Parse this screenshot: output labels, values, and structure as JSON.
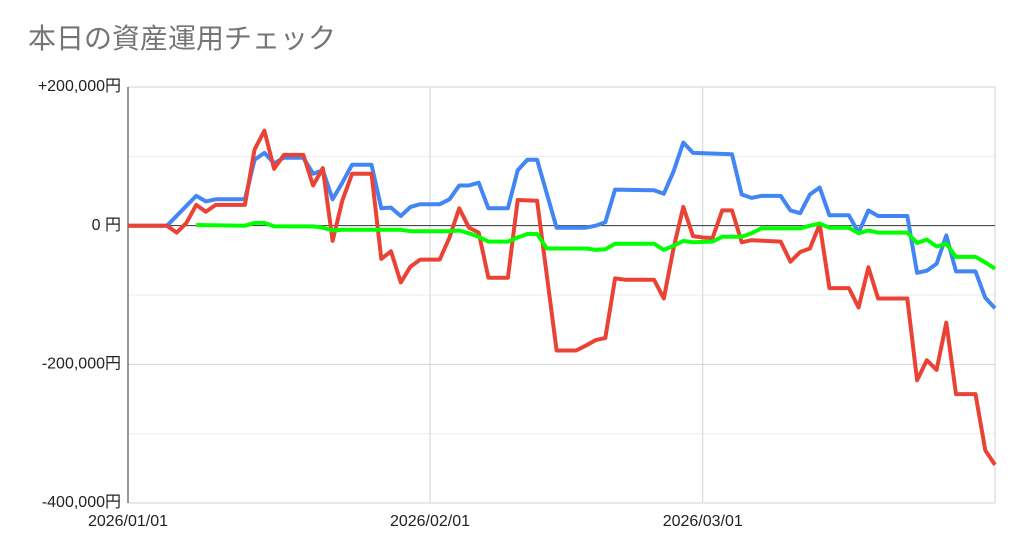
{
  "chart_data": {
    "type": "line",
    "title": "本日の資産運用チェック",
    "xlim": [
      "2026-01-01",
      "2026-03-31"
    ],
    "ylim": [
      -400000,
      200000
    ],
    "grid": true,
    "minor_grid": [
      100000,
      -100000,
      -300000
    ],
    "legend": "none",
    "xticks": [
      {
        "value": "2026-01-01",
        "label": "2026/01/01"
      },
      {
        "value": "2026-02-01",
        "label": "2026/02/01"
      },
      {
        "value": "2026-03-01",
        "label": "2026/03/01"
      }
    ],
    "yticks": [
      {
        "value": 200000,
        "label": "+200,000円"
      },
      {
        "value": 0,
        "label": "0 円"
      },
      {
        "value": -200000,
        "label": "-200,000円"
      },
      {
        "value": -400000,
        "label": "-400,000円"
      }
    ],
    "series": [
      {
        "color": "#4285f4",
        "points": [
          [
            "2026-01-01",
            0
          ],
          [
            "2026-01-05",
            0
          ],
          [
            "2026-01-08",
            43000
          ],
          [
            "2026-01-09",
            35000
          ],
          [
            "2026-01-10",
            38000
          ],
          [
            "2026-01-13",
            38000
          ],
          [
            "2026-01-14",
            95000
          ],
          [
            "2026-01-15",
            105000
          ],
          [
            "2026-01-16",
            90000
          ],
          [
            "2026-01-17",
            98000
          ],
          [
            "2026-01-19",
            98000
          ],
          [
            "2026-01-20",
            75000
          ],
          [
            "2026-01-21",
            80000
          ],
          [
            "2026-01-22",
            38000
          ],
          [
            "2026-01-23",
            62000
          ],
          [
            "2026-01-24",
            88000
          ],
          [
            "2026-01-26",
            88000
          ],
          [
            "2026-01-27",
            25000
          ],
          [
            "2026-01-28",
            26000
          ],
          [
            "2026-01-29",
            14000
          ],
          [
            "2026-01-30",
            27000
          ],
          [
            "2026-01-31",
            31000
          ],
          [
            "2026-02-02",
            31000
          ],
          [
            "2026-02-03",
            38000
          ],
          [
            "2026-02-04",
            58000
          ],
          [
            "2026-02-05",
            58000
          ],
          [
            "2026-02-06",
            62000
          ],
          [
            "2026-02-07",
            25000
          ],
          [
            "2026-02-09",
            25000
          ],
          [
            "2026-02-10",
            80000
          ],
          [
            "2026-02-11",
            95000
          ],
          [
            "2026-02-12",
            95000
          ],
          [
            "2026-02-14",
            -3000
          ],
          [
            "2026-02-17",
            -3000
          ],
          [
            "2026-02-18",
            0
          ],
          [
            "2026-02-19",
            5000
          ],
          [
            "2026-02-20",
            52000
          ],
          [
            "2026-02-24",
            51000
          ],
          [
            "2026-02-25",
            46000
          ],
          [
            "2026-02-26",
            78000
          ],
          [
            "2026-02-27",
            120000
          ],
          [
            "2026-02-28",
            105000
          ],
          [
            "2026-03-04",
            103000
          ],
          [
            "2026-03-05",
            45000
          ],
          [
            "2026-03-06",
            40000
          ],
          [
            "2026-03-07",
            43000
          ],
          [
            "2026-03-09",
            43000
          ],
          [
            "2026-03-10",
            22000
          ],
          [
            "2026-03-11",
            18000
          ],
          [
            "2026-03-12",
            45000
          ],
          [
            "2026-03-13",
            55000
          ],
          [
            "2026-03-14",
            15000
          ],
          [
            "2026-03-16",
            15000
          ],
          [
            "2026-03-17",
            -10000
          ],
          [
            "2026-03-18",
            22000
          ],
          [
            "2026-03-19",
            14000
          ],
          [
            "2026-03-22",
            14000
          ],
          [
            "2026-03-23",
            -68000
          ],
          [
            "2026-03-24",
            -65000
          ],
          [
            "2026-03-25",
            -55000
          ],
          [
            "2026-03-26",
            -14000
          ],
          [
            "2026-03-27",
            -66000
          ],
          [
            "2026-03-29",
            -66000
          ],
          [
            "2026-03-30",
            -104000
          ],
          [
            "2026-03-31",
            -119000
          ]
        ]
      },
      {
        "color": "#ea4335",
        "points": [
          [
            "2026-01-01",
            0
          ],
          [
            "2026-01-05",
            0
          ],
          [
            "2026-01-06",
            -10000
          ],
          [
            "2026-01-07",
            4000
          ],
          [
            "2026-01-08",
            30000
          ],
          [
            "2026-01-09",
            20000
          ],
          [
            "2026-01-10",
            30000
          ],
          [
            "2026-01-13",
            30000
          ],
          [
            "2026-01-14",
            110000
          ],
          [
            "2026-01-15",
            137000
          ],
          [
            "2026-01-16",
            82000
          ],
          [
            "2026-01-17",
            102000
          ],
          [
            "2026-01-19",
            102000
          ],
          [
            "2026-01-20",
            58000
          ],
          [
            "2026-01-21",
            83000
          ],
          [
            "2026-01-22",
            -22000
          ],
          [
            "2026-01-23",
            36000
          ],
          [
            "2026-01-24",
            75000
          ],
          [
            "2026-01-26",
            75000
          ],
          [
            "2026-01-27",
            -48000
          ],
          [
            "2026-01-28",
            -37000
          ],
          [
            "2026-01-29",
            -82000
          ],
          [
            "2026-01-30",
            -59000
          ],
          [
            "2026-01-31",
            -49000
          ],
          [
            "2026-02-02",
            -49000
          ],
          [
            "2026-02-03",
            -17000
          ],
          [
            "2026-02-04",
            25000
          ],
          [
            "2026-02-05",
            -3000
          ],
          [
            "2026-02-06",
            -10000
          ],
          [
            "2026-02-07",
            -75000
          ],
          [
            "2026-02-09",
            -75000
          ],
          [
            "2026-02-10",
            37000
          ],
          [
            "2026-02-12",
            36000
          ],
          [
            "2026-02-14",
            -180000
          ],
          [
            "2026-02-16",
            -180000
          ],
          [
            "2026-02-17",
            -173000
          ],
          [
            "2026-02-18",
            -165000
          ],
          [
            "2026-02-19",
            -162000
          ],
          [
            "2026-02-20",
            -76000
          ],
          [
            "2026-02-21",
            -78000
          ],
          [
            "2026-02-24",
            -78000
          ],
          [
            "2026-02-25",
            -105000
          ],
          [
            "2026-02-26",
            -33000
          ],
          [
            "2026-02-27",
            27000
          ],
          [
            "2026-02-28",
            -15000
          ],
          [
            "2026-03-01",
            -17000
          ],
          [
            "2026-03-02",
            -18000
          ],
          [
            "2026-03-03",
            22000
          ],
          [
            "2026-03-04",
            22000
          ],
          [
            "2026-03-05",
            -24000
          ],
          [
            "2026-03-06",
            -21000
          ],
          [
            "2026-03-09",
            -23000
          ],
          [
            "2026-03-10",
            -52000
          ],
          [
            "2026-03-11",
            -38000
          ],
          [
            "2026-03-12",
            -33000
          ],
          [
            "2026-03-13",
            2000
          ],
          [
            "2026-03-14",
            -90000
          ],
          [
            "2026-03-16",
            -90000
          ],
          [
            "2026-03-17",
            -118000
          ],
          [
            "2026-03-18",
            -60000
          ],
          [
            "2026-03-19",
            -105000
          ],
          [
            "2026-03-22",
            -105000
          ],
          [
            "2026-03-23",
            -223000
          ],
          [
            "2026-03-24",
            -194000
          ],
          [
            "2026-03-25",
            -208000
          ],
          [
            "2026-03-26",
            -140000
          ],
          [
            "2026-03-27",
            -243000
          ],
          [
            "2026-03-29",
            -243000
          ],
          [
            "2026-03-30",
            -324000
          ],
          [
            "2026-03-31",
            -345000
          ]
        ]
      },
      {
        "color": "#00ff00",
        "points": [
          [
            "2026-01-08",
            1000
          ],
          [
            "2026-01-13",
            0
          ],
          [
            "2026-01-14",
            4000
          ],
          [
            "2026-01-15",
            4000
          ],
          [
            "2026-01-16",
            -1000
          ],
          [
            "2026-01-20",
            -1000
          ],
          [
            "2026-01-21",
            -3000
          ],
          [
            "2026-01-22",
            -7000
          ],
          [
            "2026-01-23",
            -6000
          ],
          [
            "2026-01-29",
            -6000
          ],
          [
            "2026-01-30",
            -8000
          ],
          [
            "2026-02-03",
            -8000
          ],
          [
            "2026-02-04",
            -7000
          ],
          [
            "2026-02-05",
            -11000
          ],
          [
            "2026-02-06",
            -16000
          ],
          [
            "2026-02-07",
            -23000
          ],
          [
            "2026-02-09",
            -23000
          ],
          [
            "2026-02-10",
            -17000
          ],
          [
            "2026-02-11",
            -12000
          ],
          [
            "2026-02-12",
            -12000
          ],
          [
            "2026-02-13",
            -33000
          ],
          [
            "2026-02-17",
            -33000
          ],
          [
            "2026-02-18",
            -35000
          ],
          [
            "2026-02-19",
            -34000
          ],
          [
            "2026-02-20",
            -26000
          ],
          [
            "2026-02-24",
            -26000
          ],
          [
            "2026-02-25",
            -35000
          ],
          [
            "2026-02-26",
            -29000
          ],
          [
            "2026-02-27",
            -22000
          ],
          [
            "2026-02-28",
            -24000
          ],
          [
            "2026-03-02",
            -23000
          ],
          [
            "2026-03-03",
            -16000
          ],
          [
            "2026-03-05",
            -16000
          ],
          [
            "2026-03-06",
            -11000
          ],
          [
            "2026-03-07",
            -4000
          ],
          [
            "2026-03-11",
            -4000
          ],
          [
            "2026-03-12",
            0
          ],
          [
            "2026-03-13",
            3000
          ],
          [
            "2026-03-14",
            -3000
          ],
          [
            "2026-03-16",
            -3000
          ],
          [
            "2026-03-17",
            -11000
          ],
          [
            "2026-03-18",
            -7000
          ],
          [
            "2026-03-19",
            -10000
          ],
          [
            "2026-03-22",
            -10000
          ],
          [
            "2026-03-23",
            -25000
          ],
          [
            "2026-03-24",
            -20000
          ],
          [
            "2026-03-25",
            -30000
          ],
          [
            "2026-03-26",
            -26000
          ],
          [
            "2026-03-27",
            -45000
          ],
          [
            "2026-03-29",
            -45000
          ],
          [
            "2026-03-30",
            -53000
          ],
          [
            "2026-03-31",
            -62000
          ]
        ]
      }
    ]
  }
}
